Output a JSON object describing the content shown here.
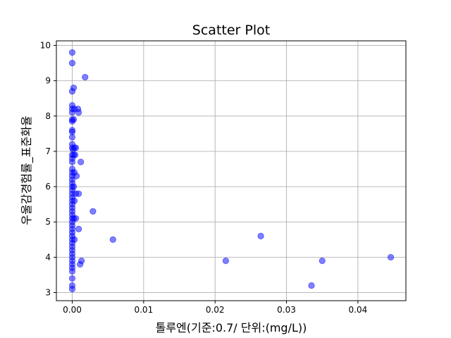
{
  "chart_data": {
    "type": "scatter",
    "title": "Scatter Plot",
    "xlabel": "톨루엔(기준:0.7/ 단위:(mg/L))",
    "ylabel": "우울감경험률_표준화율",
    "xlim": [
      -0.00222,
      0.04672
    ],
    "ylim": [
      2.77,
      10.13
    ],
    "x_ticks": [
      0.0,
      0.01,
      0.02,
      0.03,
      0.04
    ],
    "x_tick_labels": [
      "0.00",
      "0.01",
      "0.02",
      "0.03",
      "0.04"
    ],
    "y_ticks": [
      3,
      4,
      5,
      6,
      7,
      8,
      9,
      10
    ],
    "y_tick_labels": [
      "3",
      "4",
      "5",
      "6",
      "7",
      "8",
      "9",
      "10"
    ],
    "grid": true,
    "marker_color": "#0000ff",
    "marker_alpha": 0.5,
    "points": [
      [
        0.0,
        9.8
      ],
      [
        0.0,
        9.5
      ],
      [
        0.0002,
        8.8
      ],
      [
        0.0,
        8.7
      ],
      [
        0.0018,
        9.1
      ],
      [
        0.0,
        8.3
      ],
      [
        0.0,
        8.2
      ],
      [
        0.0,
        8.1
      ],
      [
        0.0003,
        8.2
      ],
      [
        0.0008,
        8.2
      ],
      [
        0.0009,
        8.1
      ],
      [
        0.0,
        7.9
      ],
      [
        0.0,
        7.85
      ],
      [
        0.0002,
        7.9
      ],
      [
        0.0,
        7.6
      ],
      [
        0.0,
        7.55
      ],
      [
        0.0,
        7.4
      ],
      [
        0.0,
        7.2
      ],
      [
        0.0,
        7.1
      ],
      [
        0.0001,
        7.05
      ],
      [
        0.0003,
        7.1
      ],
      [
        0.0005,
        7.1
      ],
      [
        0.0,
        6.9
      ],
      [
        0.0002,
        6.9
      ],
      [
        0.0004,
        6.9
      ],
      [
        0.0,
        6.8
      ],
      [
        0.0,
        6.7
      ],
      [
        0.0012,
        6.7
      ],
      [
        0.0,
        6.5
      ],
      [
        0.0,
        6.4
      ],
      [
        0.0003,
        6.4
      ],
      [
        0.0,
        6.3
      ],
      [
        0.0006,
        6.3
      ],
      [
        0.0,
        6.2
      ],
      [
        0.0,
        6.1
      ],
      [
        0.0,
        6.0
      ],
      [
        0.0002,
        6.0
      ],
      [
        0.0,
        5.9
      ],
      [
        0.0,
        5.8
      ],
      [
        0.0005,
        5.8
      ],
      [
        0.0009,
        5.8
      ],
      [
        0.0,
        5.7
      ],
      [
        0.0,
        5.6
      ],
      [
        0.0003,
        5.6
      ],
      [
        0.0,
        5.5
      ],
      [
        0.0,
        5.4
      ],
      [
        0.0,
        5.3
      ],
      [
        0.0029,
        5.3
      ],
      [
        0.0,
        5.2
      ],
      [
        0.0,
        5.1
      ],
      [
        0.0002,
        5.1
      ],
      [
        0.0005,
        5.1
      ],
      [
        0.0,
        5.0
      ],
      [
        0.0,
        4.9
      ],
      [
        0.0,
        4.8
      ],
      [
        0.0009,
        4.8
      ],
      [
        0.0,
        4.7
      ],
      [
        0.0,
        4.6
      ],
      [
        0.0,
        4.5
      ],
      [
        0.0003,
        4.5
      ],
      [
        0.0057,
        4.5
      ],
      [
        0.0,
        4.4
      ],
      [
        0.0,
        4.3
      ],
      [
        0.0,
        4.2
      ],
      [
        0.0,
        4.1
      ],
      [
        0.0,
        4.0
      ],
      [
        0.0,
        3.9
      ],
      [
        0.0013,
        3.9
      ],
      [
        0.0,
        3.8
      ],
      [
        0.0011,
        3.8
      ],
      [
        0.0,
        3.7
      ],
      [
        0.0,
        3.6
      ],
      [
        0.0,
        3.4
      ],
      [
        0.0,
        3.2
      ],
      [
        0.0,
        3.1
      ],
      [
        0.0215,
        3.9
      ],
      [
        0.0264,
        4.6
      ],
      [
        0.0335,
        3.2
      ],
      [
        0.035,
        3.9
      ],
      [
        0.0446,
        4.0
      ]
    ]
  }
}
